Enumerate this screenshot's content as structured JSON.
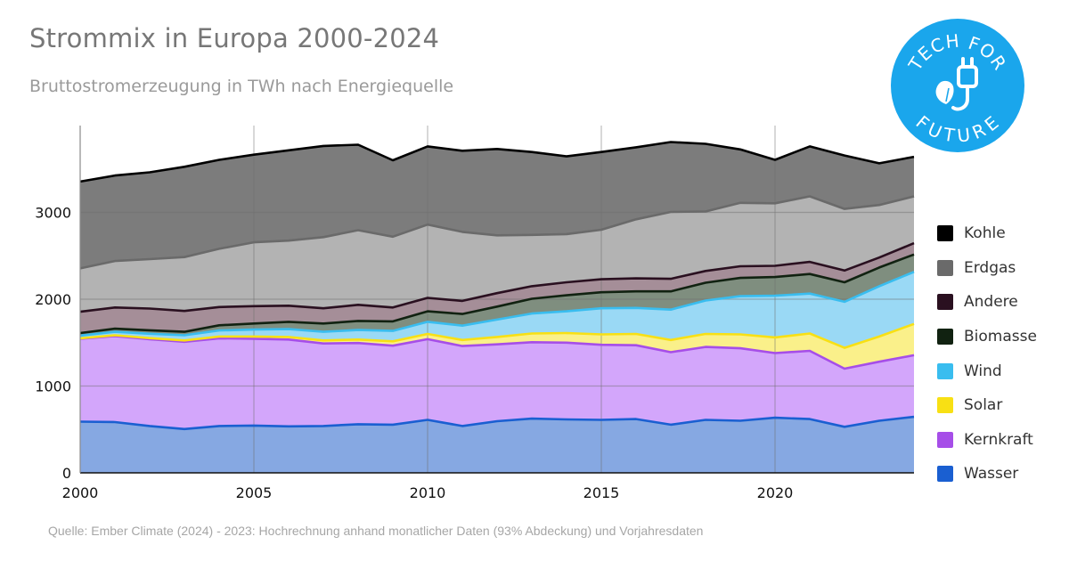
{
  "header": {
    "title": "Strommix in Europa 2000-2024",
    "subtitle": "Bruttostromerzeugung in TWh nach Energiequelle"
  },
  "source": "Quelle: Ember Climate (2024) - 2023: Hochrechnung anhand monatlicher Daten (93% Abdeckung) und Vorjahresdaten",
  "logo": {
    "text_top": "TECH FOR",
    "text_bottom": "FUTURE",
    "color": "#1aa6ec",
    "icon": "plug-leaf-icon"
  },
  "chart_data": {
    "type": "area",
    "stacked": true,
    "x": [
      2000,
      2001,
      2002,
      2003,
      2004,
      2005,
      2006,
      2007,
      2008,
      2009,
      2010,
      2011,
      2012,
      2013,
      2014,
      2015,
      2016,
      2017,
      2018,
      2019,
      2020,
      2021,
      2022,
      2023,
      2024
    ],
    "xlim": [
      2000,
      2024
    ],
    "ylim": [
      0,
      4000
    ],
    "xticks": [
      "2000",
      "2005",
      "2010",
      "2015",
      "2020"
    ],
    "yticks": [
      "0",
      "1000",
      "2000",
      "3000"
    ],
    "grid": true,
    "legend_position": "right",
    "series": [
      {
        "name": "Wasser",
        "color": "#1a5fd1",
        "fill": "#86a8e2",
        "values": [
          590,
          585,
          540,
          505,
          540,
          545,
          535,
          540,
          560,
          555,
          610,
          540,
          595,
          625,
          615,
          610,
          620,
          555,
          610,
          600,
          635,
          620,
          530,
          600,
          645
        ]
      },
      {
        "name": "Kernkraft",
        "color": "#a64ee8",
        "fill": "#d3a6fb",
        "values": [
          955,
          990,
          1000,
          1005,
          1010,
          1000,
          1000,
          950,
          935,
          910,
          930,
          920,
          885,
          880,
          885,
          865,
          850,
          835,
          840,
          835,
          745,
          785,
          670,
          680,
          710
        ]
      },
      {
        "name": "Solar",
        "color": "#f8e014",
        "fill": "#faf08a",
        "values": [
          5,
          10,
          12,
          15,
          20,
          25,
          30,
          35,
          40,
          50,
          60,
          70,
          85,
          100,
          110,
          120,
          130,
          140,
          150,
          160,
          180,
          200,
          240,
          290,
          360
        ]
      },
      {
        "name": "Wind",
        "color": "#39bdef",
        "fill": "#9ad9f5",
        "values": [
          30,
          40,
          50,
          60,
          70,
          80,
          90,
          100,
          110,
          120,
          140,
          165,
          200,
          230,
          250,
          300,
          300,
          350,
          385,
          440,
          480,
          460,
          530,
          580,
          600
        ]
      },
      {
        "name": "Biomasse",
        "color": "#112211",
        "fill": "#7f8e7f",
        "values": [
          30,
          35,
          40,
          40,
          60,
          70,
          85,
          95,
          105,
          110,
          120,
          135,
          150,
          170,
          185,
          185,
          190,
          210,
          205,
          210,
          215,
          225,
          225,
          215,
          200
        ]
      },
      {
        "name": "Andere",
        "color": "#2a1020",
        "fill": "#a58e98",
        "values": [
          245,
          245,
          250,
          240,
          210,
          200,
          185,
          175,
          185,
          160,
          155,
          150,
          155,
          145,
          150,
          150,
          150,
          145,
          135,
          135,
          130,
          140,
          135,
          115,
          130
        ]
      },
      {
        "name": "Erdgas",
        "color": "#6a6a6a",
        "fill": "#b3b3b3",
        "values": [
          500,
          535,
          570,
          620,
          670,
          735,
          750,
          820,
          860,
          815,
          845,
          795,
          665,
          590,
          555,
          570,
          680,
          770,
          685,
          730,
          720,
          755,
          710,
          605,
          540
        ]
      },
      {
        "name": "Kohle",
        "color": "#000000",
        "fill": "#7c7c7c",
        "values": [
          1000,
          985,
          1000,
          1040,
          1025,
          1010,
          1040,
          1050,
          985,
          880,
          900,
          935,
          995,
          955,
          895,
          895,
          830,
          805,
          780,
          615,
          500,
          575,
          615,
          480,
          455
        ]
      }
    ]
  }
}
